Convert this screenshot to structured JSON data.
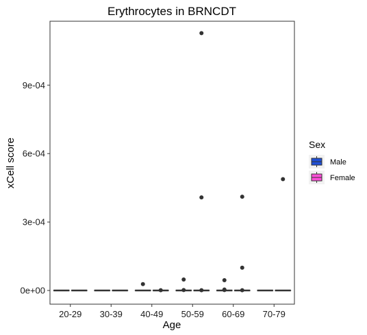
{
  "chart_data": {
    "type": "boxplot",
    "title": "Erythrocytes in BRNCDT",
    "xlabel": "Age",
    "ylabel": "xCell score",
    "categories": [
      "20-29",
      "30-39",
      "40-49",
      "50-59",
      "60-69",
      "70-79"
    ],
    "y_ticks": [
      {
        "value": 0,
        "label": "0e+00"
      },
      {
        "value": 0.0003,
        "label": "3e-04"
      },
      {
        "value": 0.0006,
        "label": "6e-04"
      },
      {
        "value": 0.0009,
        "label": "9e-04"
      }
    ],
    "ylim": [
      -6e-05,
      0.00118
    ],
    "grid": false,
    "legend": {
      "title": "Sex",
      "position": "right",
      "entries": [
        {
          "label": "Male",
          "color": "#1f4fd6"
        },
        {
          "label": "Female",
          "color": "#ff4fd8"
        }
      ]
    },
    "series": [
      {
        "name": "Male",
        "color": "#1f4fd6",
        "boxes": [
          {
            "category": "20-29",
            "min": 0,
            "q1": 0,
            "median": 0,
            "q3": 0,
            "max": 0,
            "outliers": []
          },
          {
            "category": "30-39",
            "min": 0,
            "q1": 0,
            "median": 0,
            "q3": 0,
            "max": 0,
            "outliers": []
          },
          {
            "category": "40-49",
            "min": 0,
            "q1": 0,
            "median": 0,
            "q3": 0,
            "max": 0,
            "outliers": [
              2.8e-05
            ]
          },
          {
            "category": "50-59",
            "min": 0,
            "q1": 0,
            "median": 0,
            "q3": 0,
            "max": 0,
            "outliers": [
              4.8e-05,
              2e-06
            ]
          },
          {
            "category": "60-69",
            "min": 0,
            "q1": 0,
            "median": 0,
            "q3": 0,
            "max": 0,
            "outliers": [
              4.5e-05,
              4e-06,
              2e-06
            ]
          },
          {
            "category": "70-79",
            "min": 0,
            "q1": 0,
            "median": 0,
            "q3": 0,
            "max": 0,
            "outliers": []
          }
        ]
      },
      {
        "name": "Female",
        "color": "#ff4fd8",
        "boxes": [
          {
            "category": "20-29",
            "min": 0,
            "q1": 0,
            "median": 0,
            "q3": 0,
            "max": 0,
            "outliers": []
          },
          {
            "category": "30-39",
            "min": 0,
            "q1": 0,
            "median": 0,
            "q3": 0,
            "max": 0,
            "outliers": []
          },
          {
            "category": "40-49",
            "min": 0,
            "q1": 0,
            "median": 0,
            "q3": 0,
            "max": 0,
            "outliers": [
              1e-06
            ]
          },
          {
            "category": "50-59",
            "min": 0,
            "q1": 0,
            "median": 0,
            "q3": 0,
            "max": 0,
            "outliers": [
              0.001128,
              0.000408,
              1e-06
            ]
          },
          {
            "category": "60-69",
            "min": 0,
            "q1": 0,
            "median": 0,
            "q3": 0,
            "max": 0,
            "outliers": [
              0.000411,
              0.0001,
              1e-06
            ]
          },
          {
            "category": "70-79",
            "min": 0,
            "q1": 0,
            "median": 0,
            "q3": 0,
            "max": 0,
            "outliers": [
              0.000488
            ]
          }
        ]
      }
    ]
  }
}
